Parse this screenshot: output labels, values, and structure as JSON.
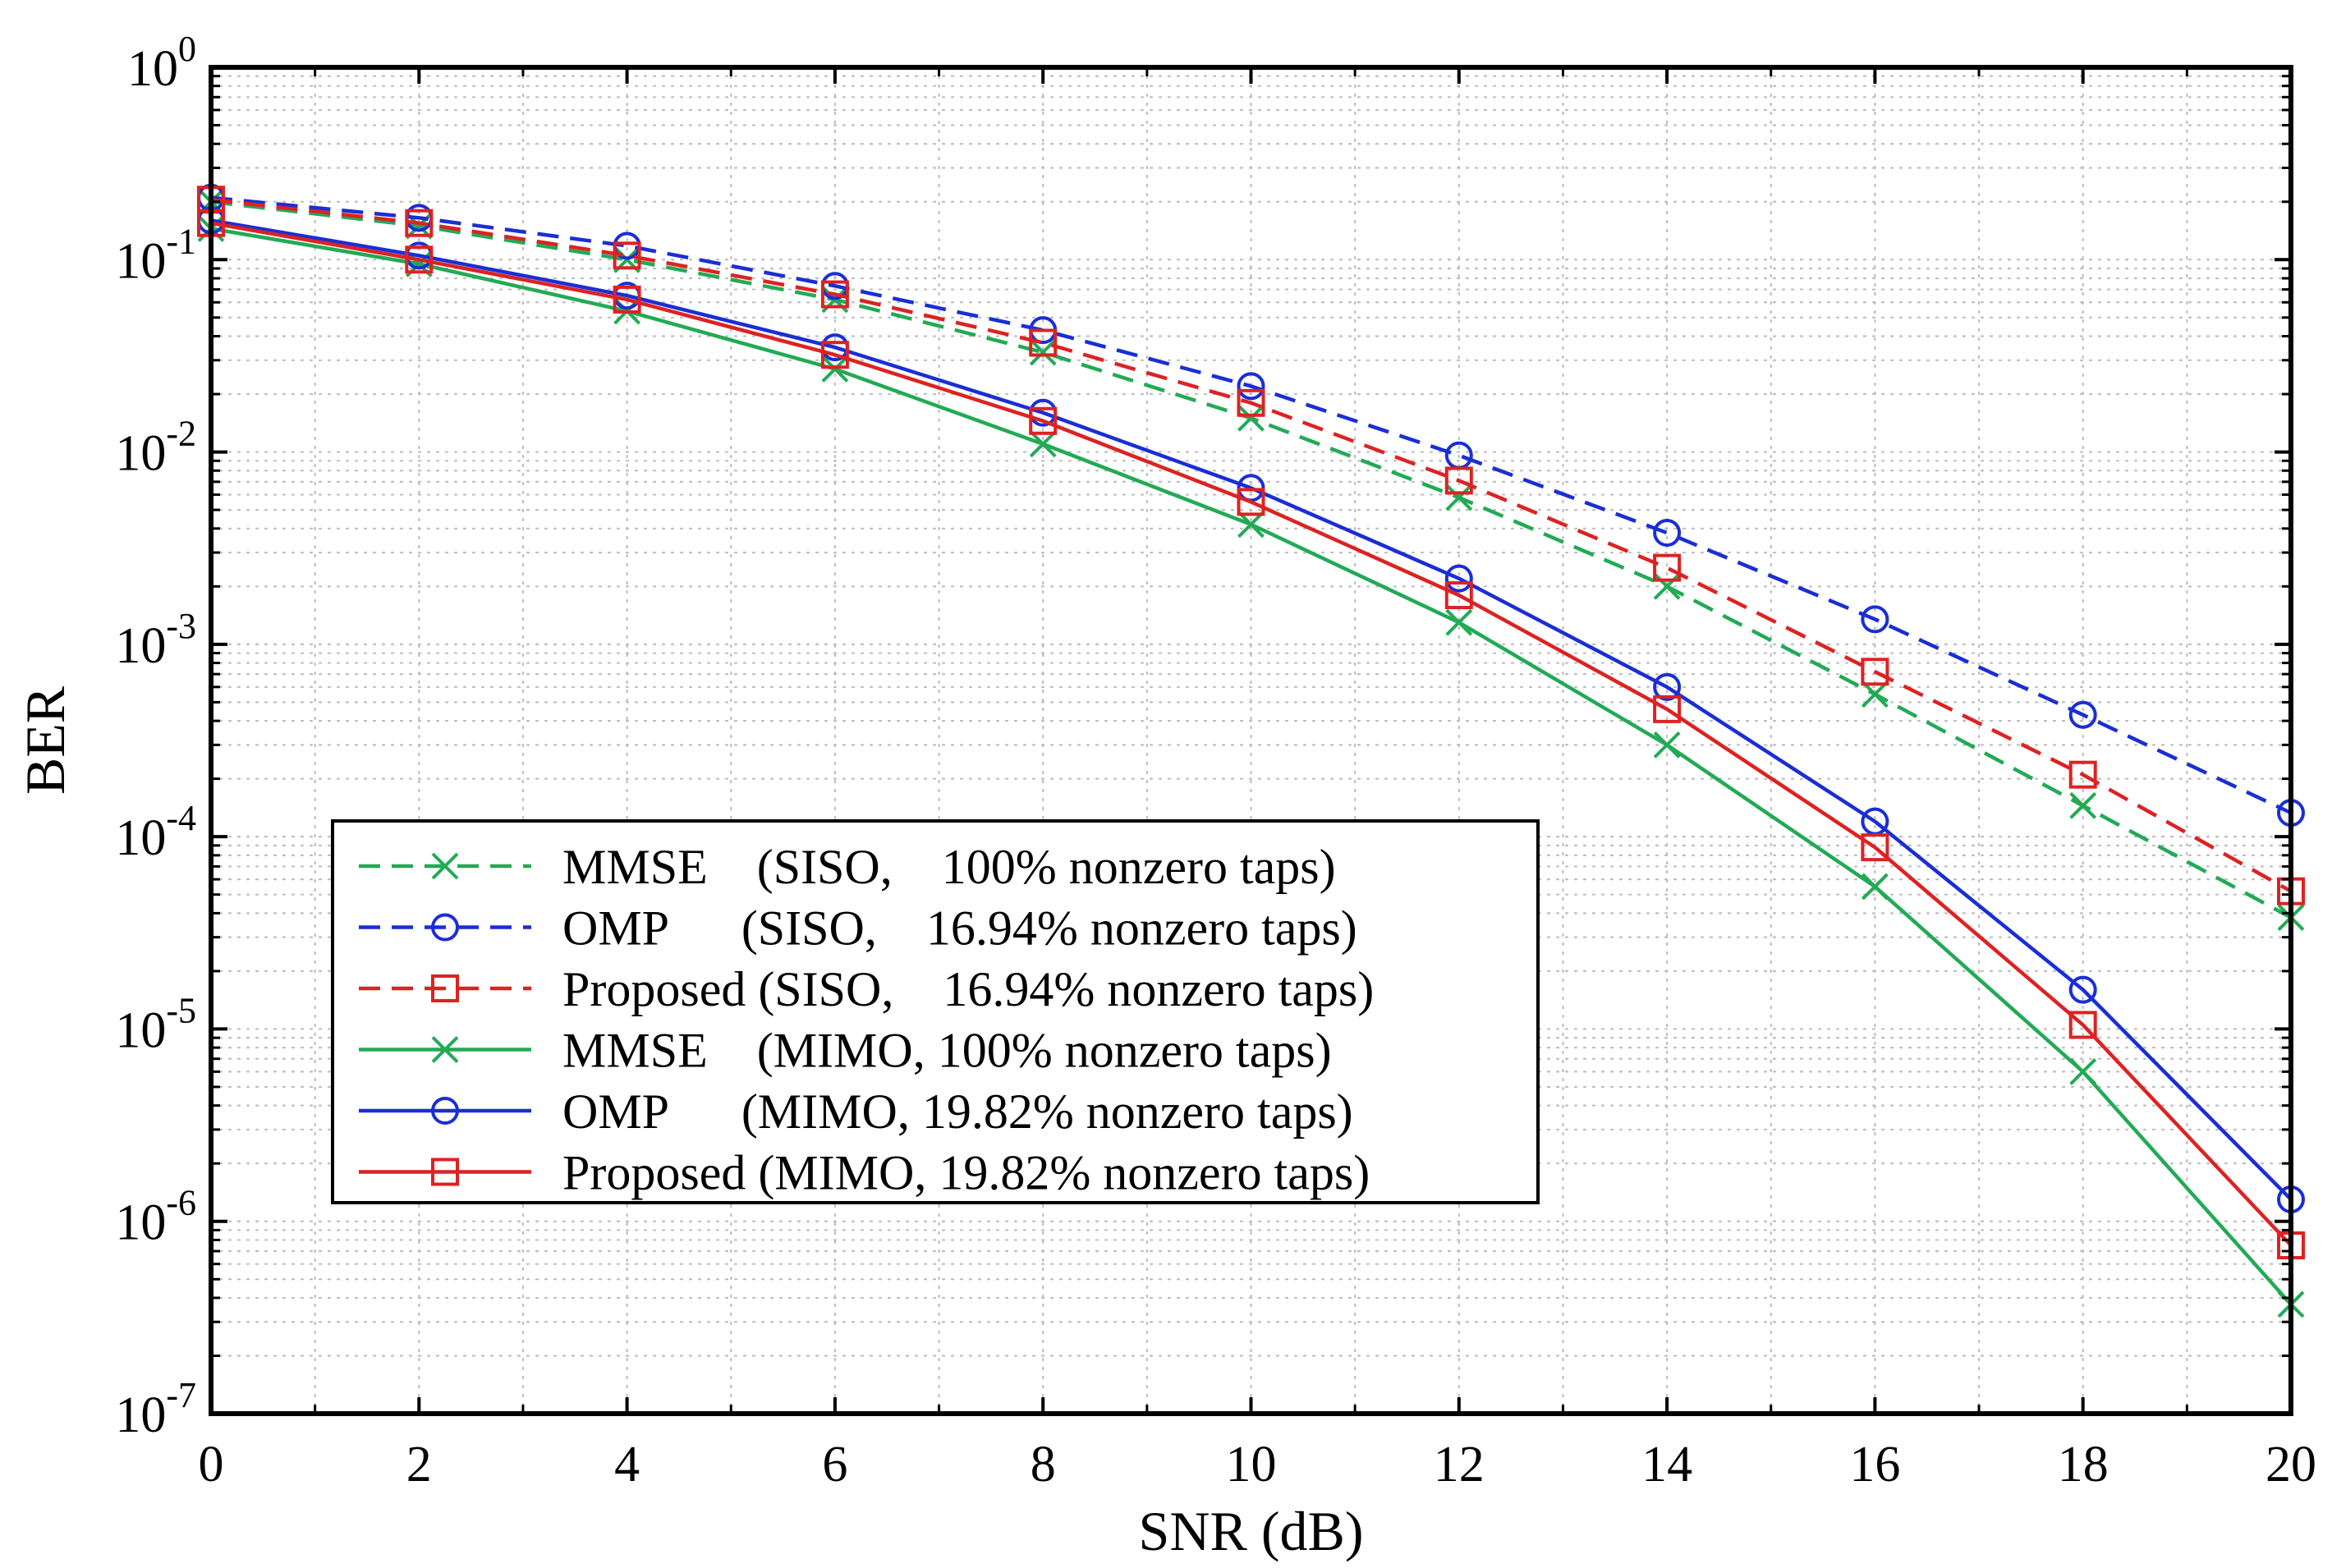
{
  "chart_data": {
    "type": "line",
    "title": "",
    "xlabel": "SNR (dB)",
    "ylabel": "BER",
    "xlim": [
      0,
      20
    ],
    "ylim": [
      1e-07,
      1
    ],
    "yscale": "log",
    "grid": true,
    "x": [
      0,
      2,
      4,
      6,
      8,
      10,
      12,
      14,
      16,
      18,
      20
    ],
    "x_ticks": [
      "0",
      "2",
      "4",
      "6",
      "8",
      "10",
      "12",
      "14",
      "16",
      "18",
      "20"
    ],
    "y_ticks": [
      {
        "base": "10",
        "exp": "0"
      },
      {
        "base": "10",
        "exp": "-1"
      },
      {
        "base": "10",
        "exp": "-2"
      },
      {
        "base": "10",
        "exp": "-3"
      },
      {
        "base": "10",
        "exp": "-4"
      },
      {
        "base": "10",
        "exp": "-5"
      },
      {
        "base": "10",
        "exp": "-6"
      },
      {
        "base": "10",
        "exp": "-7"
      }
    ],
    "legend_position": "lower-left",
    "series": [
      {
        "name": "MMSE    (SISO,    100% nonzero taps)",
        "color": "#22aa55",
        "dash": "dashed",
        "marker": "x",
        "values": [
          0.2,
          0.15,
          0.1,
          0.062,
          0.033,
          0.015,
          0.0058,
          0.002,
          0.00055,
          0.000145,
          3.8e-05
        ]
      },
      {
        "name": "OMP      (SISO,    16.94% nonzero taps)",
        "color": "#1a2ed6",
        "dash": "dashed",
        "marker": "o",
        "values": [
          0.21,
          0.165,
          0.118,
          0.073,
          0.043,
          0.022,
          0.0096,
          0.0038,
          0.00135,
          0.00043,
          0.000133
        ]
      },
      {
        "name": "Proposed (SISO,    16.94% nonzero taps)",
        "color": "#dd2222",
        "dash": "dashed",
        "marker": "s",
        "values": [
          0.205,
          0.155,
          0.105,
          0.066,
          0.037,
          0.018,
          0.0071,
          0.0025,
          0.00072,
          0.00021,
          5.2e-05
        ]
      },
      {
        "name": "MMSE    (MIMO, 100% nonzero taps)",
        "color": "#22aa55",
        "dash": "solid",
        "marker": "x",
        "values": [
          0.145,
          0.095,
          0.054,
          0.027,
          0.011,
          0.0042,
          0.0013,
          0.0003,
          5.5e-05,
          6e-06,
          3.7e-07
        ]
      },
      {
        "name": "OMP      (MIMO, 19.82% nonzero taps)",
        "color": "#1a2ed6",
        "dash": "solid",
        "marker": "o",
        "values": [
          0.16,
          0.105,
          0.065,
          0.035,
          0.016,
          0.0065,
          0.0022,
          0.0006,
          0.00012,
          1.6e-05,
          1.3e-06
        ]
      },
      {
        "name": "Proposed (MIMO, 19.82% nonzero taps)",
        "color": "#dd2222",
        "dash": "solid",
        "marker": "s",
        "values": [
          0.155,
          0.1,
          0.062,
          0.032,
          0.0145,
          0.0055,
          0.0018,
          0.00046,
          8.8e-05,
          1.05e-05,
          7.5e-07
        ]
      }
    ]
  }
}
